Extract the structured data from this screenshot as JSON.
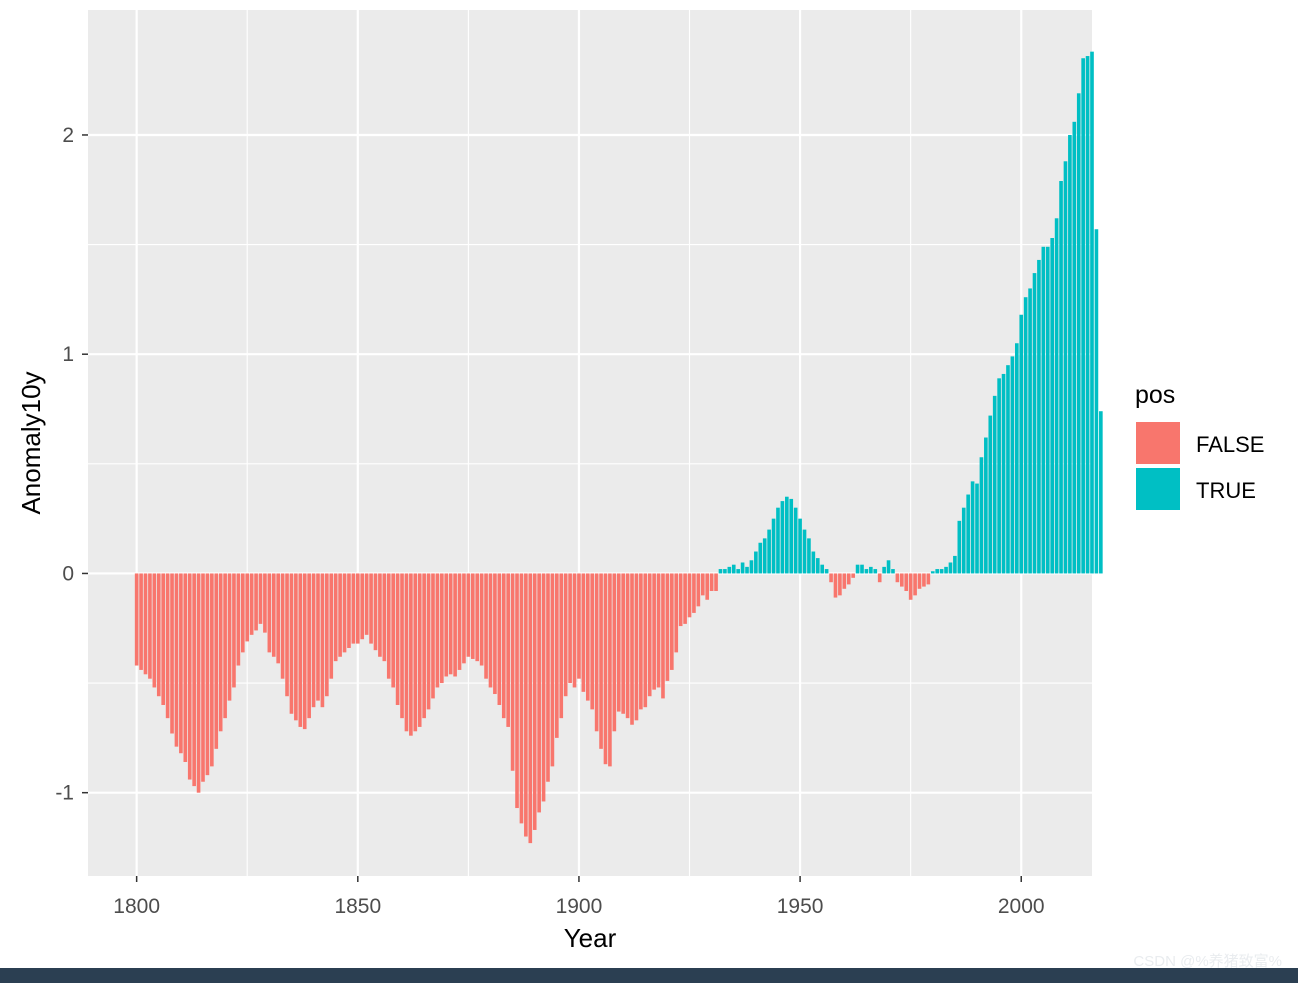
{
  "chart_data": {
    "type": "bar",
    "title": "",
    "xlabel": "Year",
    "ylabel": "Anomaly10y",
    "xlim": [
      1789,
      2016
    ],
    "ylim": [
      -1.38,
      2.57
    ],
    "x_ticks": [
      1800,
      1850,
      1900,
      1950,
      2000
    ],
    "x_minor_ticks": [
      1825,
      1875,
      1925,
      1975
    ],
    "y_ticks": [
      -1,
      0,
      1,
      2
    ],
    "y_tick_labels": [
      "-1",
      "0",
      "1",
      "2"
    ],
    "y_minor_ticks": [
      -0.5,
      0.5,
      1.5
    ],
    "grid": true,
    "legend_position": "right",
    "legend": {
      "title": "pos",
      "entries": [
        {
          "label": "FALSE",
          "color": "#F8766D"
        },
        {
          "label": "TRUE",
          "color": "#00BFC4"
        }
      ]
    },
    "start_year": 1800,
    "values": [
      -0.42,
      -0.44,
      -0.46,
      -0.48,
      -0.52,
      -0.56,
      -0.6,
      -0.66,
      -0.73,
      -0.79,
      -0.82,
      -0.86,
      -0.94,
      -0.97,
      -1.0,
      -0.95,
      -0.92,
      -0.88,
      -0.8,
      -0.72,
      -0.66,
      -0.58,
      -0.52,
      -0.42,
      -0.36,
      -0.31,
      -0.28,
      -0.26,
      -0.23,
      -0.27,
      -0.36,
      -0.38,
      -0.41,
      -0.48,
      -0.56,
      -0.64,
      -0.67,
      -0.7,
      -0.71,
      -0.66,
      -0.61,
      -0.58,
      -0.61,
      -0.56,
      -0.48,
      -0.4,
      -0.38,
      -0.36,
      -0.34,
      -0.32,
      -0.32,
      -0.3,
      -0.28,
      -0.32,
      -0.35,
      -0.38,
      -0.4,
      -0.48,
      -0.52,
      -0.6,
      -0.66,
      -0.72,
      -0.74,
      -0.72,
      -0.7,
      -0.66,
      -0.62,
      -0.57,
      -0.52,
      -0.5,
      -0.47,
      -0.46,
      -0.47,
      -0.44,
      -0.41,
      -0.38,
      -0.39,
      -0.4,
      -0.42,
      -0.48,
      -0.52,
      -0.55,
      -0.6,
      -0.66,
      -0.7,
      -0.9,
      -1.07,
      -1.14,
      -1.2,
      -1.23,
      -1.17,
      -1.09,
      -1.04,
      -0.95,
      -0.88,
      -0.75,
      -0.66,
      -0.56,
      -0.5,
      -0.52,
      -0.48,
      -0.54,
      -0.58,
      -0.62,
      -0.72,
      -0.8,
      -0.87,
      -0.88,
      -0.72,
      -0.63,
      -0.64,
      -0.66,
      -0.69,
      -0.67,
      -0.62,
      -0.61,
      -0.56,
      -0.53,
      -0.52,
      -0.57,
      -0.49,
      -0.44,
      -0.36,
      -0.24,
      -0.23,
      -0.2,
      -0.18,
      -0.15,
      -0.1,
      -0.12,
      -0.08,
      -0.08,
      0.02,
      0.02,
      0.03,
      0.04,
      0.02,
      0.05,
      0.03,
      0.06,
      0.1,
      0.14,
      0.16,
      0.2,
      0.25,
      0.3,
      0.33,
      0.35,
      0.34,
      0.3,
      0.25,
      0.2,
      0.16,
      0.1,
      0.07,
      0.04,
      0.02,
      -0.04,
      -0.11,
      -0.1,
      -0.07,
      -0.05,
      -0.02,
      0.04,
      0.04,
      0.02,
      0.03,
      0.02,
      -0.04,
      0.03,
      0.06,
      0.02,
      -0.04,
      -0.06,
      -0.08,
      -0.12,
      -0.1,
      -0.07,
      -0.06,
      -0.05,
      0.01,
      0.02,
      0.02,
      0.03,
      0.05,
      0.08,
      0.24,
      0.3,
      0.36,
      0.42,
      0.41,
      0.53,
      0.62,
      0.72,
      0.81,
      0.89,
      0.91,
      0.95,
      0.99,
      1.05,
      1.18,
      1.26,
      1.3,
      1.37,
      1.43,
      1.49,
      1.49,
      1.53,
      1.62,
      1.79,
      1.88,
      2.0,
      2.06,
      2.19,
      2.35,
      2.36,
      2.38,
      1.57,
      0.74
    ]
  },
  "watermark": "CSDN @%养猪致富%",
  "colors": {
    "panel_bg": "#EBEBEB",
    "grid": "#FFFFFF",
    "negative": "#F8766D",
    "positive": "#00BFC4"
  }
}
